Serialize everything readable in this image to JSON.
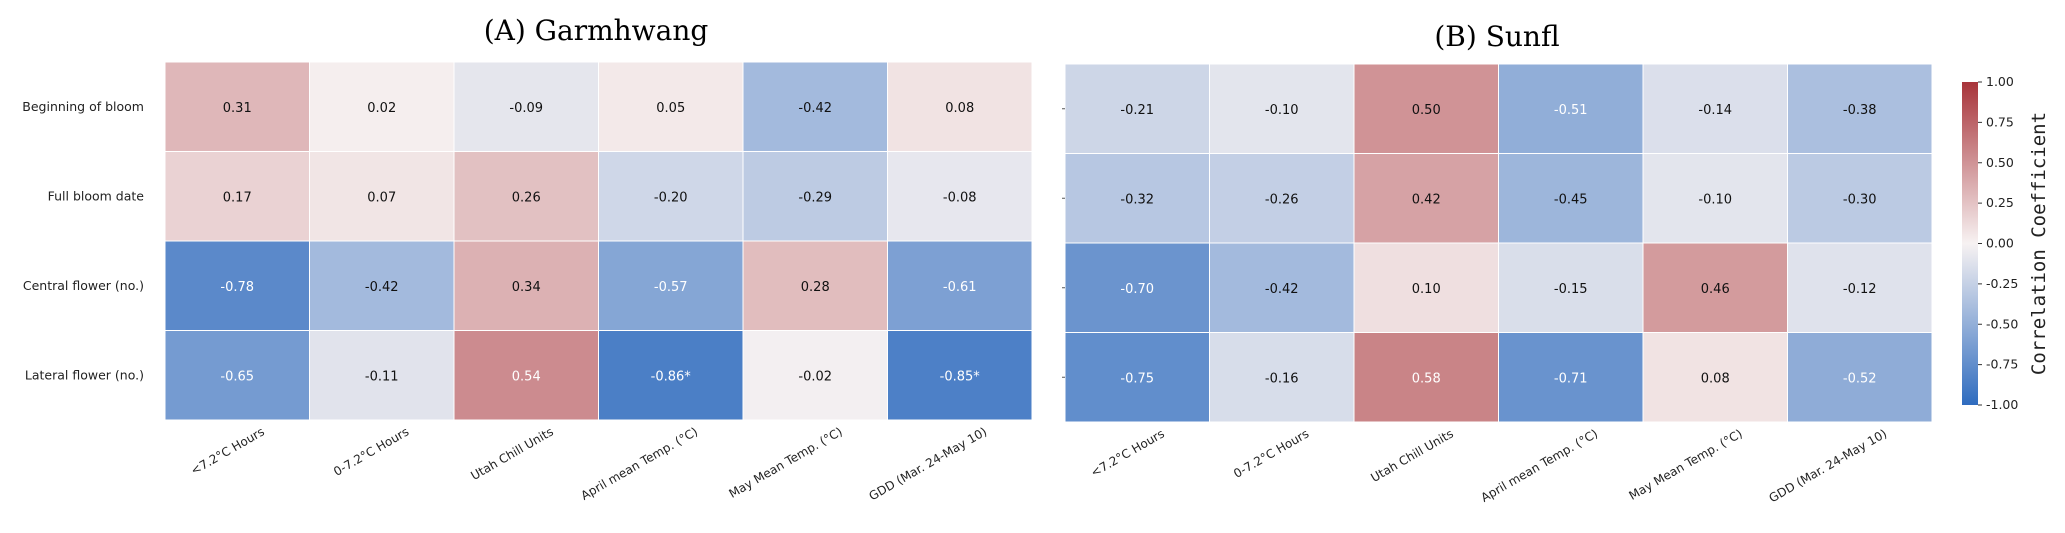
{
  "chart_data": [
    {
      "type": "heatmap",
      "title": "(A) Garmhwang",
      "rows": [
        "Beginning of bloom",
        "Full bloom date",
        "Central flower (no.)",
        "Lateral flower (no.)"
      ],
      "columns": [
        "<7.2°C Hours",
        "0-7.2°C Hours",
        "Utah Chill Units",
        "April mean Temp. (°C)",
        "May Mean Temp. (°C)",
        "GDD (Mar. 24-May 10)"
      ],
      "values": [
        [
          0.31,
          0.02,
          -0.09,
          0.05,
          -0.42,
          0.08
        ],
        [
          0.17,
          0.07,
          0.26,
          -0.2,
          -0.29,
          -0.08
        ],
        [
          -0.78,
          -0.42,
          0.34,
          -0.57,
          0.28,
          -0.61
        ],
        [
          -0.65,
          -0.11,
          0.54,
          -0.86,
          -0.02,
          -0.85
        ]
      ],
      "labels": [
        [
          "0.31",
          "0.02",
          "-0.09",
          "0.05",
          "-0.42",
          "0.08"
        ],
        [
          "0.17",
          "0.07",
          "0.26",
          "-0.20",
          "-0.29",
          "-0.08"
        ],
        [
          "-0.78",
          "-0.42",
          "0.34",
          "-0.57",
          "0.28",
          "-0.61"
        ],
        [
          "-0.65",
          "-0.11",
          "0.54",
          "-0.86*",
          "-0.02",
          "-0.85*"
        ]
      ]
    },
    {
      "type": "heatmap",
      "title": "(B) Sunfl",
      "rows": [
        "Beginning of bloom",
        "Full bloom date",
        "Central flower (no.)",
        "Lateral flower (no.)"
      ],
      "columns": [
        "<7.2°C Hours",
        "0-7.2°C Hours",
        "Utah Chill Units",
        "April mean Temp. (°C)",
        "May Mean Temp. (°C)",
        "GDD (Mar. 24-May 10)"
      ],
      "values": [
        [
          -0.21,
          -0.1,
          0.5,
          -0.51,
          -0.14,
          -0.38
        ],
        [
          -0.32,
          -0.26,
          0.42,
          -0.45,
          -0.1,
          -0.3
        ],
        [
          -0.7,
          -0.42,
          0.1,
          -0.15,
          0.46,
          -0.12
        ],
        [
          -0.75,
          -0.16,
          0.58,
          -0.71,
          0.08,
          -0.52
        ]
      ],
      "labels": [
        [
          "-0.21",
          "-0.10",
          "0.50",
          "-0.51",
          "-0.14",
          "-0.38"
        ],
        [
          "-0.32",
          "-0.26",
          "0.42",
          "-0.45",
          "-0.10",
          "-0.30"
        ],
        [
          "-0.70",
          "-0.42",
          "0.10",
          "-0.15",
          "0.46",
          "-0.12"
        ],
        [
          "-0.75",
          "-0.16",
          "0.58",
          "-0.71",
          "0.08",
          "-0.52"
        ]
      ]
    }
  ],
  "colorbar": {
    "label": "Correlation Coefficient",
    "range": [
      -1.0,
      1.0
    ],
    "ticks": [
      "1.00",
      "0.75",
      "0.50",
      "0.25",
      "0.00",
      "-0.25",
      "-0.50",
      "-0.75",
      "-1.00"
    ],
    "tick_values": [
      1.0,
      0.75,
      0.5,
      0.25,
      0.0,
      -0.25,
      -0.5,
      -0.75,
      -1.0
    ],
    "colors": {
      "negative": "#2f6cbf",
      "neutral": "#f7f2f2",
      "positive": "#a8343a"
    }
  }
}
